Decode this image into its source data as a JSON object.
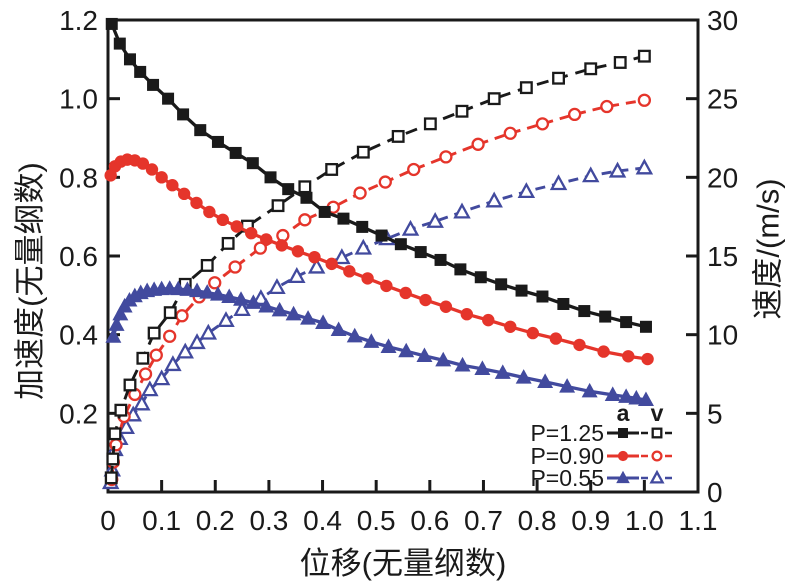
{
  "chart_data": {
    "type": "line",
    "title": "",
    "xlabel": "位移(无量纲数)",
    "ylabel_left": "加速度(无量纲数)",
    "ylabel_right": "速度/(m/s)",
    "xlim": [
      0,
      1.1
    ],
    "ylim_left": [
      0,
      1.2
    ],
    "ylim_right": [
      0,
      30
    ],
    "grid": false,
    "legend_position": "inside-bottom-right",
    "x_ticks": {
      "values": [
        0,
        0.1,
        0.2,
        0.3,
        0.4,
        0.5,
        0.6,
        0.7,
        0.8,
        0.9,
        1.0,
        1.1
      ],
      "labels": [
        "0",
        "0.1",
        "0.2",
        "0.3",
        "0.4",
        "0.5",
        "0.6",
        "0.7",
        "0.8",
        "0.9",
        "1.0",
        "1.1"
      ]
    },
    "left_ticks": {
      "values": [
        0.2,
        0.4,
        0.6,
        0.8,
        1.0,
        1.2
      ],
      "labels": [
        "0.2",
        "0.4",
        "0.6",
        "0.8",
        "1.0",
        "1.2"
      ]
    },
    "right_ticks": {
      "values": [
        0,
        5,
        10,
        15,
        20,
        25,
        30
      ],
      "labels": [
        "0",
        "5",
        "10",
        "15",
        "20",
        "25",
        "30"
      ]
    },
    "colors": {
      "p125": "#1a1a1a",
      "p090": "#e5352b",
      "p055": "#424a9e"
    },
    "series": [
      {
        "name": "P=0.55 v",
        "param": "P=0.55",
        "quantity": "v",
        "axis": "right",
        "color": "#424a9e",
        "marker": "triangle",
        "fill": "open",
        "line": "dashed",
        "x": [
          0.005,
          0.008,
          0.013,
          0.022,
          0.034,
          0.047,
          0.063,
          0.078,
          0.1,
          0.121,
          0.144,
          0.166,
          0.187,
          0.22,
          0.25,
          0.285,
          0.315,
          0.352,
          0.389,
          0.436,
          0.476,
          0.52,
          0.564,
          0.61,
          0.66,
          0.72,
          0.78,
          0.84,
          0.9,
          0.95,
          1.0
        ],
        "y": [
          0.6,
          1.4,
          2.7,
          3.4,
          4.1,
          4.9,
          5.6,
          6.5,
          7.2,
          8.1,
          8.9,
          9.5,
          10.1,
          10.9,
          11.6,
          12.3,
          13.0,
          13.7,
          14.3,
          14.9,
          15.5,
          16.1,
          16.7,
          17.2,
          17.8,
          18.5,
          19.1,
          19.6,
          20.1,
          20.4,
          20.6
        ]
      },
      {
        "name": "P=0.90 v",
        "param": "P=0.90",
        "quantity": "v",
        "axis": "right",
        "color": "#e5352b",
        "marker": "circle",
        "fill": "open",
        "line": "dashed",
        "x": [
          0.007,
          0.01,
          0.015,
          0.03,
          0.05,
          0.07,
          0.09,
          0.115,
          0.138,
          0.17,
          0.199,
          0.237,
          0.284,
          0.326,
          0.367,
          0.42,
          0.47,
          0.517,
          0.57,
          0.63,
          0.69,
          0.75,
          0.81,
          0.87,
          0.93,
          1.0
        ],
        "y": [
          0.8,
          1.9,
          3.0,
          4.8,
          6.2,
          7.5,
          8.7,
          9.9,
          11.2,
          12.4,
          13.3,
          14.3,
          15.5,
          16.3,
          17.3,
          18.1,
          19.0,
          19.7,
          20.5,
          21.3,
          22.1,
          22.8,
          23.4,
          24.0,
          24.5,
          24.9
        ]
      },
      {
        "name": "P=1.25 v",
        "param": "P=1.25",
        "quantity": "v",
        "axis": "right",
        "color": "#1a1a1a",
        "marker": "square",
        "fill": "open",
        "line": "dashed",
        "x": [
          0.006,
          0.009,
          0.013,
          0.024,
          0.041,
          0.065,
          0.086,
          0.116,
          0.144,
          0.185,
          0.224,
          0.26,
          0.317,
          0.367,
          0.417,
          0.476,
          0.541,
          0.601,
          0.66,
          0.72,
          0.78,
          0.84,
          0.9,
          0.955,
          1.0
        ],
        "y": [
          0.9,
          2.1,
          3.7,
          5.2,
          6.8,
          8.5,
          10.1,
          11.4,
          13.2,
          14.4,
          15.8,
          16.9,
          18.2,
          19.4,
          20.5,
          21.6,
          22.6,
          23.4,
          24.2,
          25.0,
          25.7,
          26.3,
          26.9,
          27.3,
          27.7
        ]
      },
      {
        "name": "P=0.55 a",
        "param": "P=0.55",
        "quantity": "a",
        "axis": "left",
        "color": "#424a9e",
        "marker": "triangle",
        "fill": "filled",
        "line": "solid",
        "x": [
          0.01,
          0.016,
          0.023,
          0.031,
          0.04,
          0.05,
          0.061,
          0.073,
          0.086,
          0.1,
          0.115,
          0.131,
          0.148,
          0.166,
          0.185,
          0.205,
          0.226,
          0.248,
          0.271,
          0.295,
          0.32,
          0.346,
          0.373,
          0.401,
          0.43,
          0.46,
          0.491,
          0.523,
          0.556,
          0.59,
          0.625,
          0.661,
          0.698,
          0.736,
          0.775,
          0.815,
          0.856,
          0.898,
          0.941,
          0.966,
          0.985,
          1.003
        ],
        "y": [
          0.395,
          0.425,
          0.452,
          0.472,
          0.487,
          0.498,
          0.506,
          0.511,
          0.514,
          0.516,
          0.517,
          0.516,
          0.514,
          0.511,
          0.507,
          0.502,
          0.496,
          0.489,
          0.481,
          0.472,
          0.462,
          0.452,
          0.441,
          0.43,
          0.412,
          0.396,
          0.382,
          0.369,
          0.358,
          0.346,
          0.335,
          0.322,
          0.313,
          0.303,
          0.291,
          0.28,
          0.268,
          0.256,
          0.247,
          0.242,
          0.238,
          0.234
        ]
      },
      {
        "name": "P=0.90 a",
        "param": "P=0.90",
        "quantity": "a",
        "axis": "left",
        "color": "#e5352b",
        "marker": "circle",
        "fill": "filled",
        "line": "solid",
        "x": [
          0.005,
          0.013,
          0.024,
          0.036,
          0.05,
          0.065,
          0.082,
          0.1,
          0.12,
          0.142,
          0.165,
          0.189,
          0.214,
          0.24,
          0.267,
          0.295,
          0.324,
          0.354,
          0.385,
          0.417,
          0.45,
          0.484,
          0.519,
          0.555,
          0.592,
          0.63,
          0.669,
          0.709,
          0.75,
          0.792,
          0.835,
          0.879,
          0.924,
          0.97,
          1.006
        ],
        "y": [
          0.805,
          0.828,
          0.84,
          0.845,
          0.843,
          0.835,
          0.82,
          0.8,
          0.78,
          0.758,
          0.735,
          0.712,
          0.692,
          0.675,
          0.658,
          0.642,
          0.627,
          0.612,
          0.597,
          0.58,
          0.561,
          0.543,
          0.524,
          0.506,
          0.488,
          0.471,
          0.452,
          0.437,
          0.42,
          0.404,
          0.39,
          0.374,
          0.357,
          0.345,
          0.338
        ]
      },
      {
        "name": "P=1.25 a",
        "param": "P=1.25",
        "quantity": "a",
        "axis": "left",
        "color": "#1a1a1a",
        "marker": "square",
        "fill": "filled",
        "line": "solid",
        "x": [
          0.007,
          0.022,
          0.041,
          0.06,
          0.084,
          0.112,
          0.14,
          0.172,
          0.205,
          0.238,
          0.27,
          0.303,
          0.336,
          0.37,
          0.404,
          0.439,
          0.474,
          0.51,
          0.546,
          0.583,
          0.62,
          0.657,
          0.695,
          0.733,
          0.771,
          0.81,
          0.849,
          0.888,
          0.927,
          0.966,
          1.003
        ],
        "y": [
          1.19,
          1.14,
          1.1,
          1.068,
          1.035,
          1.0,
          0.96,
          0.92,
          0.89,
          0.862,
          0.836,
          0.8,
          0.77,
          0.748,
          0.712,
          0.695,
          0.674,
          0.652,
          0.63,
          0.61,
          0.59,
          0.566,
          0.546,
          0.528,
          0.512,
          0.497,
          0.478,
          0.46,
          0.446,
          0.432,
          0.42
        ]
      }
    ]
  },
  "legend": {
    "column_headers": {
      "a": "a",
      "v": "v"
    },
    "rows": [
      {
        "label": "P=1.25",
        "color": "#1a1a1a",
        "marker": "square"
      },
      {
        "label": "P=0.90",
        "color": "#e5352b",
        "marker": "circle"
      },
      {
        "label": "P=0.55",
        "color": "#424a9e",
        "marker": "triangle"
      }
    ]
  }
}
